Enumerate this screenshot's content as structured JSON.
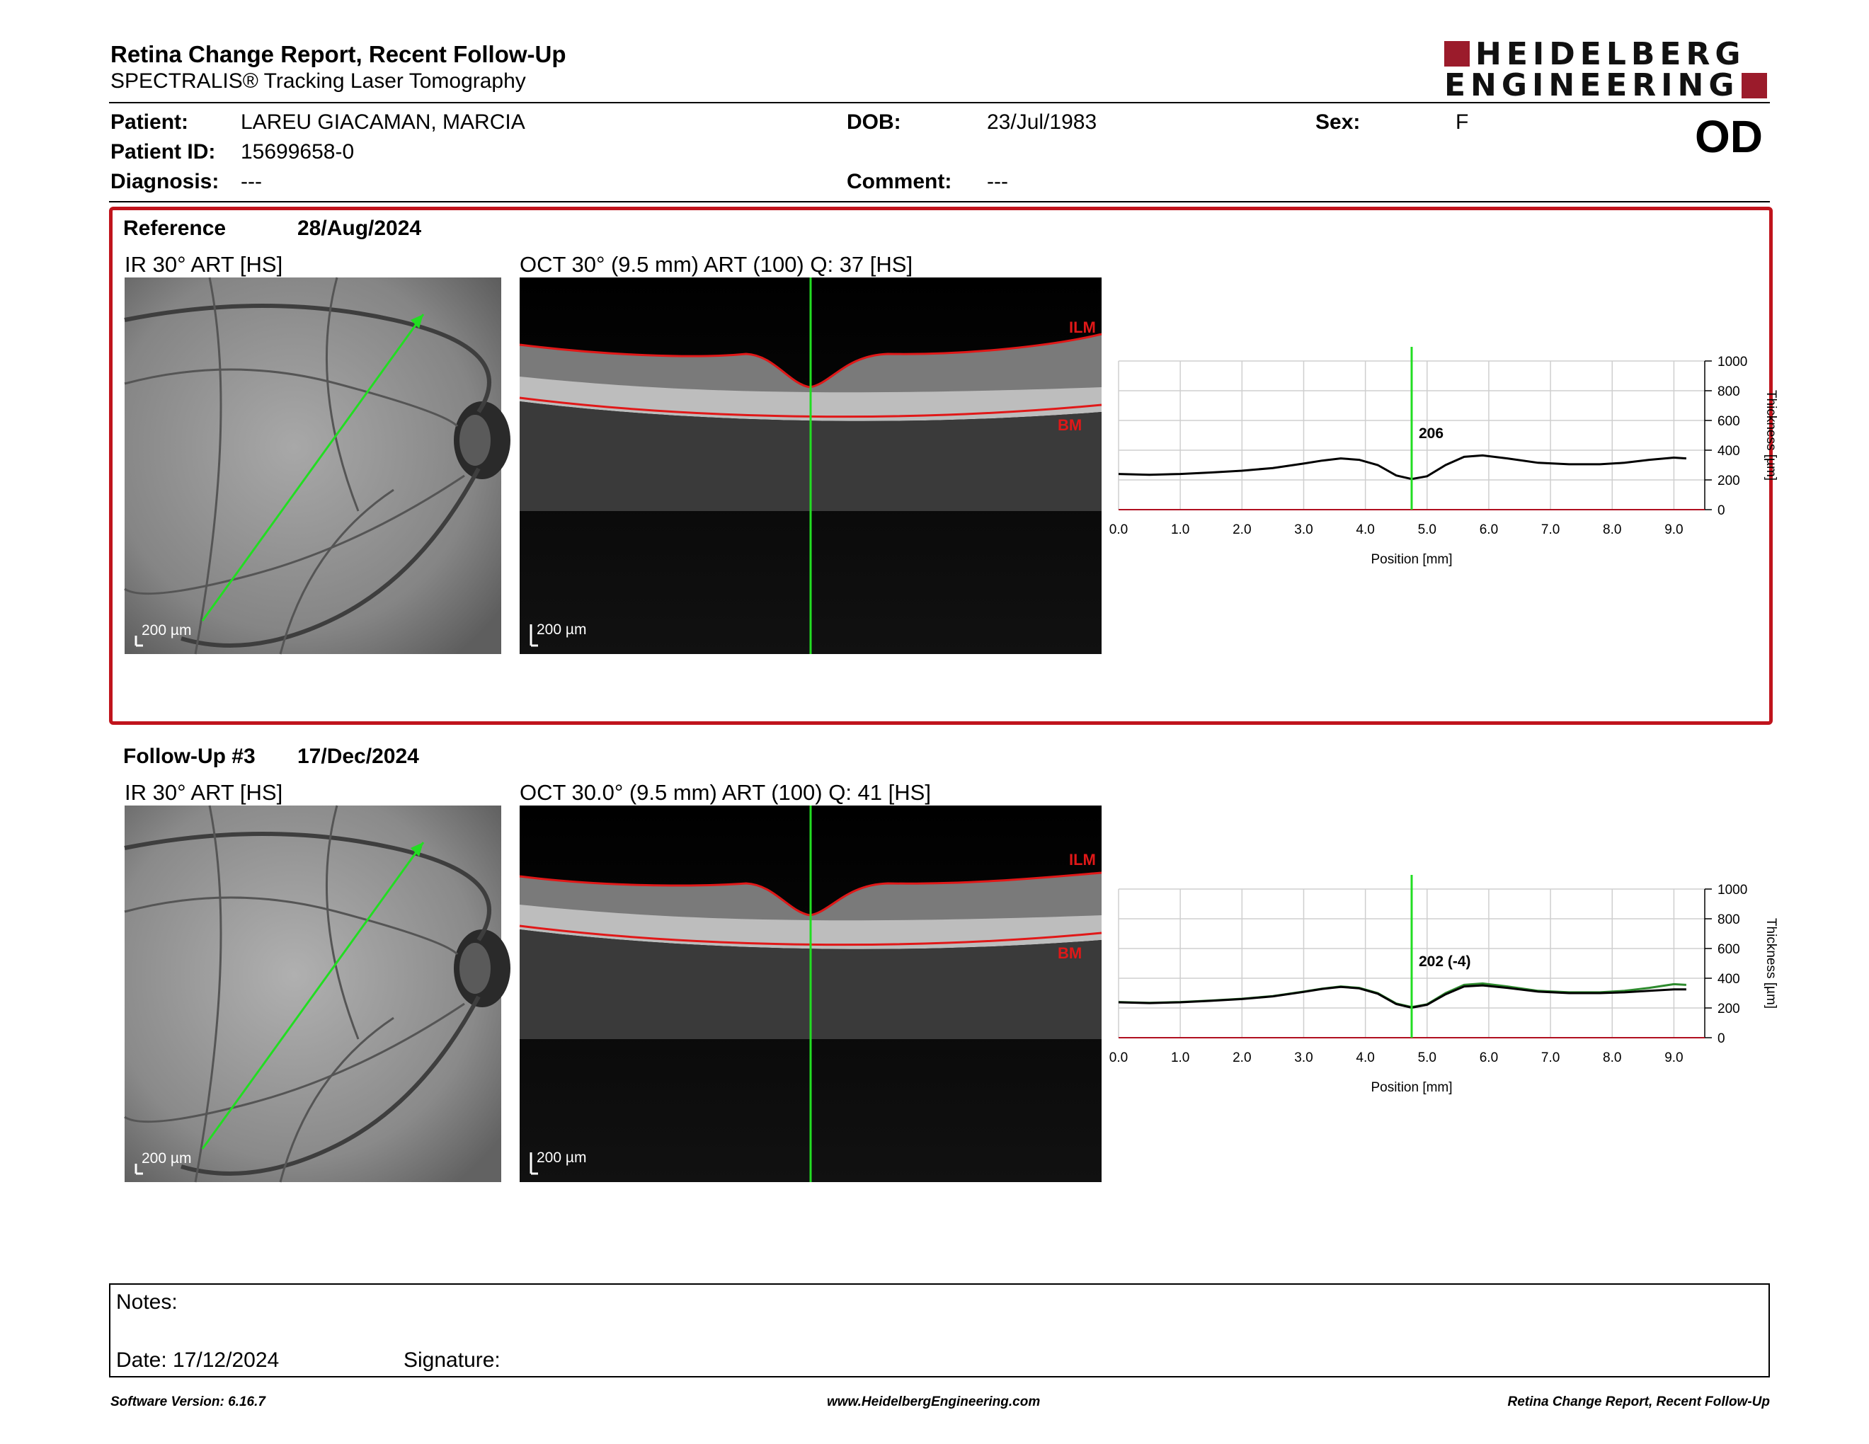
{
  "header": {
    "title": "Retina Change Report, Recent Follow-Up",
    "subtitle": "SPECTRALIS® Tracking Laser Tomography",
    "logo_line1": "HEIDELBERG",
    "logo_line2": "ENGINEERING",
    "eye": "OD"
  },
  "patient": {
    "patient_label": "Patient:",
    "patient_value": "LAREU GIACAMAN, MARCIA",
    "id_label": "Patient ID:",
    "id_value": "15699658-0",
    "diagnosis_label": "Diagnosis:",
    "diagnosis_value": "---",
    "dob_label": "DOB:",
    "dob_value": "23/Jul/1983",
    "comment_label": "Comment:",
    "comment_value": "---",
    "sex_label": "Sex:",
    "sex_value": "F"
  },
  "reference": {
    "title": "Reference",
    "date": "28/Aug/2024",
    "ir_title": "IR 30° ART [HS]",
    "oct_title": "OCT 30° (9.5 mm) ART (100) Q: 37 [HS]",
    "scale": "200 µm",
    "ilm": "ILM",
    "bm": "BM"
  },
  "followup": {
    "title": "Follow-Up #3",
    "date": "17/Dec/2024",
    "ir_title": "IR 30° ART [HS]",
    "oct_title": "OCT 30.0° (9.5 mm) ART (100) Q: 41 [HS]",
    "scale": "200 µm",
    "ilm": "ILM",
    "bm": "BM"
  },
  "chart_data": [
    {
      "type": "line",
      "title": "",
      "xlabel": "Position [mm]",
      "ylabel": "Thickness [µm]",
      "xlim": [
        0,
        9.5
      ],
      "ylim": [
        0,
        1000
      ],
      "x_ticks": [
        "0.0",
        "1.0",
        "2.0",
        "3.0",
        "4.0",
        "5.0",
        "6.0",
        "7.0",
        "8.0",
        "9.0"
      ],
      "y_ticks": [
        "0",
        "200",
        "400",
        "600",
        "800",
        "1000"
      ],
      "grid": true,
      "marker_x": 4.75,
      "marker_label": "206",
      "series": [
        {
          "color": "#000000",
          "x": [
            0,
            0.5,
            1.0,
            1.5,
            2.0,
            2.5,
            3.0,
            3.3,
            3.6,
            3.9,
            4.2,
            4.5,
            4.75,
            5.0,
            5.3,
            5.6,
            5.9,
            6.3,
            6.8,
            7.3,
            7.8,
            8.2,
            8.6,
            9.0,
            9.2
          ],
          "y": [
            240,
            235,
            240,
            250,
            262,
            280,
            310,
            330,
            345,
            335,
            300,
            230,
            206,
            225,
            300,
            355,
            365,
            345,
            315,
            305,
            305,
            315,
            335,
            350,
            345
          ]
        }
      ]
    },
    {
      "type": "line",
      "title": "",
      "xlabel": "Position [mm]",
      "ylabel": "Thickness [µm]",
      "xlim": [
        0,
        9.5
      ],
      "ylim": [
        0,
        1000
      ],
      "x_ticks": [
        "0.0",
        "1.0",
        "2.0",
        "3.0",
        "4.0",
        "5.0",
        "6.0",
        "7.0",
        "8.0",
        "9.0"
      ],
      "y_ticks": [
        "0",
        "200",
        "400",
        "600",
        "800",
        "1000"
      ],
      "grid": true,
      "marker_x": 4.75,
      "marker_label": "202 (-4)",
      "series": [
        {
          "color": "#2e8b2e",
          "x": [
            0,
            0.5,
            1.0,
            1.5,
            2.0,
            2.5,
            3.0,
            3.3,
            3.6,
            3.9,
            4.2,
            4.5,
            4.75,
            5.0,
            5.3,
            5.6,
            5.9,
            6.3,
            6.8,
            7.3,
            7.8,
            8.2,
            8.6,
            9.0,
            9.2
          ],
          "y": [
            240,
            235,
            240,
            250,
            262,
            280,
            310,
            330,
            345,
            335,
            300,
            230,
            206,
            225,
            300,
            355,
            365,
            345,
            315,
            305,
            305,
            315,
            335,
            360,
            355
          ]
        },
        {
          "color": "#000000",
          "x": [
            0,
            0.5,
            1.0,
            1.5,
            2.0,
            2.5,
            3.0,
            3.3,
            3.6,
            3.9,
            4.2,
            4.5,
            4.75,
            5.0,
            5.3,
            5.6,
            5.9,
            6.3,
            6.8,
            7.3,
            7.8,
            8.2,
            8.6,
            9.0,
            9.2
          ],
          "y": [
            238,
            233,
            238,
            248,
            260,
            278,
            308,
            328,
            342,
            332,
            296,
            226,
            202,
            222,
            292,
            345,
            352,
            335,
            310,
            300,
            300,
            305,
            315,
            325,
            325
          ]
        }
      ]
    }
  ],
  "notes": {
    "notes_label": "Notes:",
    "date_label": "Date: 17/12/2024",
    "signature_label": "Signature:"
  },
  "footer": {
    "left": "Software Version: 6.16.7",
    "center": "www.HeidelbergEngineering.com",
    "right": "Retina Change Report, Recent Follow-Up"
  },
  "colors": {
    "accent_red": "#c0141c",
    "marker_green": "#22dd22"
  }
}
